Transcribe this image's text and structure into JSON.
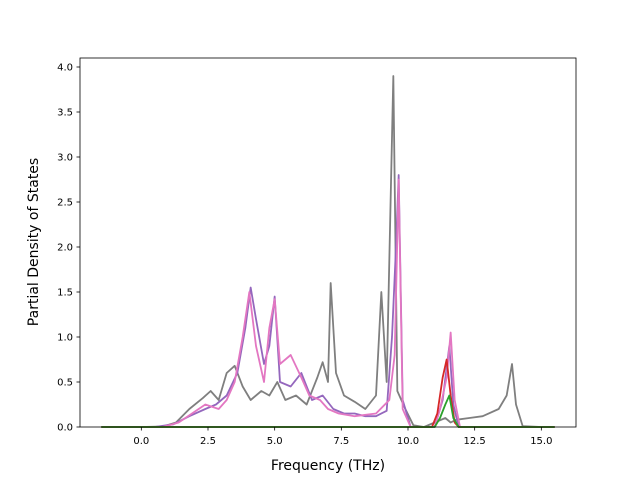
{
  "chart_data": {
    "type": "line",
    "title": "",
    "xlabel": "Frequency (THz)",
    "ylabel": "Partial Density of States",
    "xlim": [
      -2.3,
      16.3
    ],
    "ylim": [
      0,
      4.1
    ],
    "xticks": [
      "0.0",
      "2.5",
      "5.0",
      "7.5",
      "10.0",
      "12.5",
      "15.0"
    ],
    "yticks": [
      "0.0",
      "0.5",
      "1.0",
      "1.5",
      "2.0",
      "2.5",
      "3.0",
      "3.5",
      "4.0"
    ],
    "grid": false,
    "legend": "none",
    "series": [
      {
        "color": "#7f7f7f",
        "points": [
          [
            -1.5,
            0
          ],
          [
            0,
            0
          ],
          [
            0.8,
            0.005
          ],
          [
            1.3,
            0.05
          ],
          [
            1.8,
            0.2
          ],
          [
            2.3,
            0.32
          ],
          [
            2.6,
            0.4
          ],
          [
            2.9,
            0.3
          ],
          [
            3.2,
            0.6
          ],
          [
            3.5,
            0.68
          ],
          [
            3.8,
            0.45
          ],
          [
            4.1,
            0.3
          ],
          [
            4.5,
            0.4
          ],
          [
            4.8,
            0.35
          ],
          [
            5.1,
            0.5
          ],
          [
            5.4,
            0.3
          ],
          [
            5.8,
            0.35
          ],
          [
            6.2,
            0.25
          ],
          [
            6.6,
            0.55
          ],
          [
            6.8,
            0.72
          ],
          [
            7.0,
            0.5
          ],
          [
            7.1,
            1.6
          ],
          [
            7.3,
            0.6
          ],
          [
            7.6,
            0.35
          ],
          [
            8.0,
            0.28
          ],
          [
            8.4,
            0.2
          ],
          [
            8.8,
            0.35
          ],
          [
            9.0,
            1.5
          ],
          [
            9.2,
            0.5
          ],
          [
            9.45,
            3.9
          ],
          [
            9.6,
            0.4
          ],
          [
            9.9,
            0.2
          ],
          [
            10.2,
            0.02
          ],
          [
            10.6,
            0
          ],
          [
            11.0,
            0.05
          ],
          [
            11.4,
            0.1
          ],
          [
            11.6,
            0.05
          ],
          [
            11.8,
            0.08
          ],
          [
            12.3,
            0.1
          ],
          [
            12.8,
            0.12
          ],
          [
            13.4,
            0.2
          ],
          [
            13.7,
            0.35
          ],
          [
            13.9,
            0.7
          ],
          [
            14.05,
            0.25
          ],
          [
            14.3,
            0.01
          ],
          [
            15.0,
            0
          ],
          [
            15.5,
            0
          ]
        ]
      },
      {
        "color": "#9467bd",
        "points": [
          [
            -1.5,
            0
          ],
          [
            0.5,
            0
          ],
          [
            1.2,
            0.03
          ],
          [
            1.8,
            0.12
          ],
          [
            2.4,
            0.2
          ],
          [
            2.8,
            0.25
          ],
          [
            3.2,
            0.35
          ],
          [
            3.6,
            0.6
          ],
          [
            3.9,
            1.1
          ],
          [
            4.1,
            1.55
          ],
          [
            4.3,
            1.2
          ],
          [
            4.6,
            0.7
          ],
          [
            4.8,
            0.9
          ],
          [
            5.0,
            1.45
          ],
          [
            5.2,
            0.5
          ],
          [
            5.6,
            0.45
          ],
          [
            6.0,
            0.6
          ],
          [
            6.4,
            0.3
          ],
          [
            6.8,
            0.35
          ],
          [
            7.2,
            0.2
          ],
          [
            7.6,
            0.15
          ],
          [
            8.0,
            0.15
          ],
          [
            8.4,
            0.12
          ],
          [
            8.8,
            0.12
          ],
          [
            9.2,
            0.18
          ],
          [
            9.4,
            1.0
          ],
          [
            9.55,
            2.0
          ],
          [
            9.65,
            2.8
          ],
          [
            9.8,
            0.3
          ],
          [
            10.1,
            0
          ],
          [
            11.0,
            0
          ],
          [
            11.3,
            0.3
          ],
          [
            11.55,
            0.9
          ],
          [
            11.7,
            0.25
          ],
          [
            11.9,
            0
          ],
          [
            15.5,
            0
          ]
        ]
      },
      {
        "color": "#e377c2",
        "points": [
          [
            -1.5,
            0
          ],
          [
            0.8,
            0
          ],
          [
            1.4,
            0.05
          ],
          [
            1.9,
            0.15
          ],
          [
            2.4,
            0.25
          ],
          [
            2.9,
            0.2
          ],
          [
            3.2,
            0.3
          ],
          [
            3.5,
            0.5
          ],
          [
            3.8,
            1.0
          ],
          [
            4.05,
            1.5
          ],
          [
            4.3,
            0.9
          ],
          [
            4.6,
            0.5
          ],
          [
            4.8,
            1.1
          ],
          [
            5.0,
            1.42
          ],
          [
            5.2,
            0.7
          ],
          [
            5.6,
            0.8
          ],
          [
            6.0,
            0.55
          ],
          [
            6.3,
            0.35
          ],
          [
            6.7,
            0.3
          ],
          [
            7.0,
            0.2
          ],
          [
            7.4,
            0.15
          ],
          [
            8.0,
            0.12
          ],
          [
            8.8,
            0.15
          ],
          [
            9.3,
            0.3
          ],
          [
            9.5,
            0.8
          ],
          [
            9.65,
            2.75
          ],
          [
            9.8,
            0.2
          ],
          [
            10.1,
            0
          ],
          [
            11.0,
            0
          ],
          [
            11.2,
            0.2
          ],
          [
            11.45,
            0.55
          ],
          [
            11.6,
            1.05
          ],
          [
            11.75,
            0.3
          ],
          [
            11.95,
            0
          ],
          [
            15.5,
            0
          ]
        ]
      },
      {
        "color": "#d62728",
        "points": [
          [
            -1.5,
            0
          ],
          [
            10.9,
            0
          ],
          [
            11.1,
            0.15
          ],
          [
            11.3,
            0.55
          ],
          [
            11.45,
            0.75
          ],
          [
            11.6,
            0.35
          ],
          [
            11.75,
            0.05
          ],
          [
            11.9,
            0
          ],
          [
            15.5,
            0
          ]
        ]
      },
      {
        "color": "#2ca02c",
        "points": [
          [
            -1.5,
            0
          ],
          [
            11.0,
            0
          ],
          [
            11.2,
            0.1
          ],
          [
            11.4,
            0.25
          ],
          [
            11.55,
            0.35
          ],
          [
            11.7,
            0.1
          ],
          [
            11.9,
            0
          ],
          [
            15.5,
            0
          ]
        ]
      }
    ]
  }
}
